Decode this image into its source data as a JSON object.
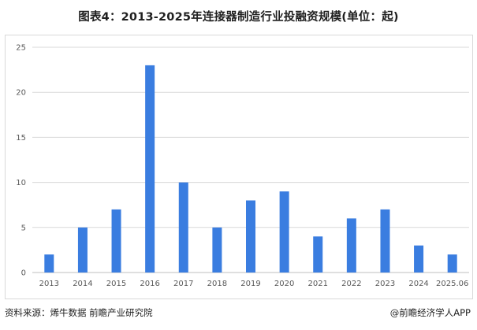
{
  "title": "图表4：2013-2025年连接器制造行业投融资规模(单位：起)",
  "source": "资料来源：烯牛数据 前瞻产业研究院",
  "copyright": "@前瞻经济学人APP",
  "colors": {
    "bar": "#3a7de0",
    "grid": "#d9d9d9",
    "axis": "#bfbfbf"
  },
  "chart_data": {
    "type": "bar",
    "title": "图表4：2013-2025年连接器制造行业投融资规模(单位：起)",
    "categories": [
      "2013",
      "2014",
      "2015",
      "2016",
      "2017",
      "2018",
      "2019",
      "2020",
      "2021",
      "2022",
      "2023",
      "2024",
      "2025.06"
    ],
    "values": [
      2,
      5,
      7,
      23,
      10,
      5,
      8,
      9,
      4,
      6,
      7,
      3,
      2
    ],
    "xlabel": "",
    "ylabel": "",
    "ylim": [
      0,
      25
    ],
    "yticks": [
      0,
      5,
      10,
      15,
      20,
      25
    ],
    "grid": true,
    "legend": "none"
  }
}
